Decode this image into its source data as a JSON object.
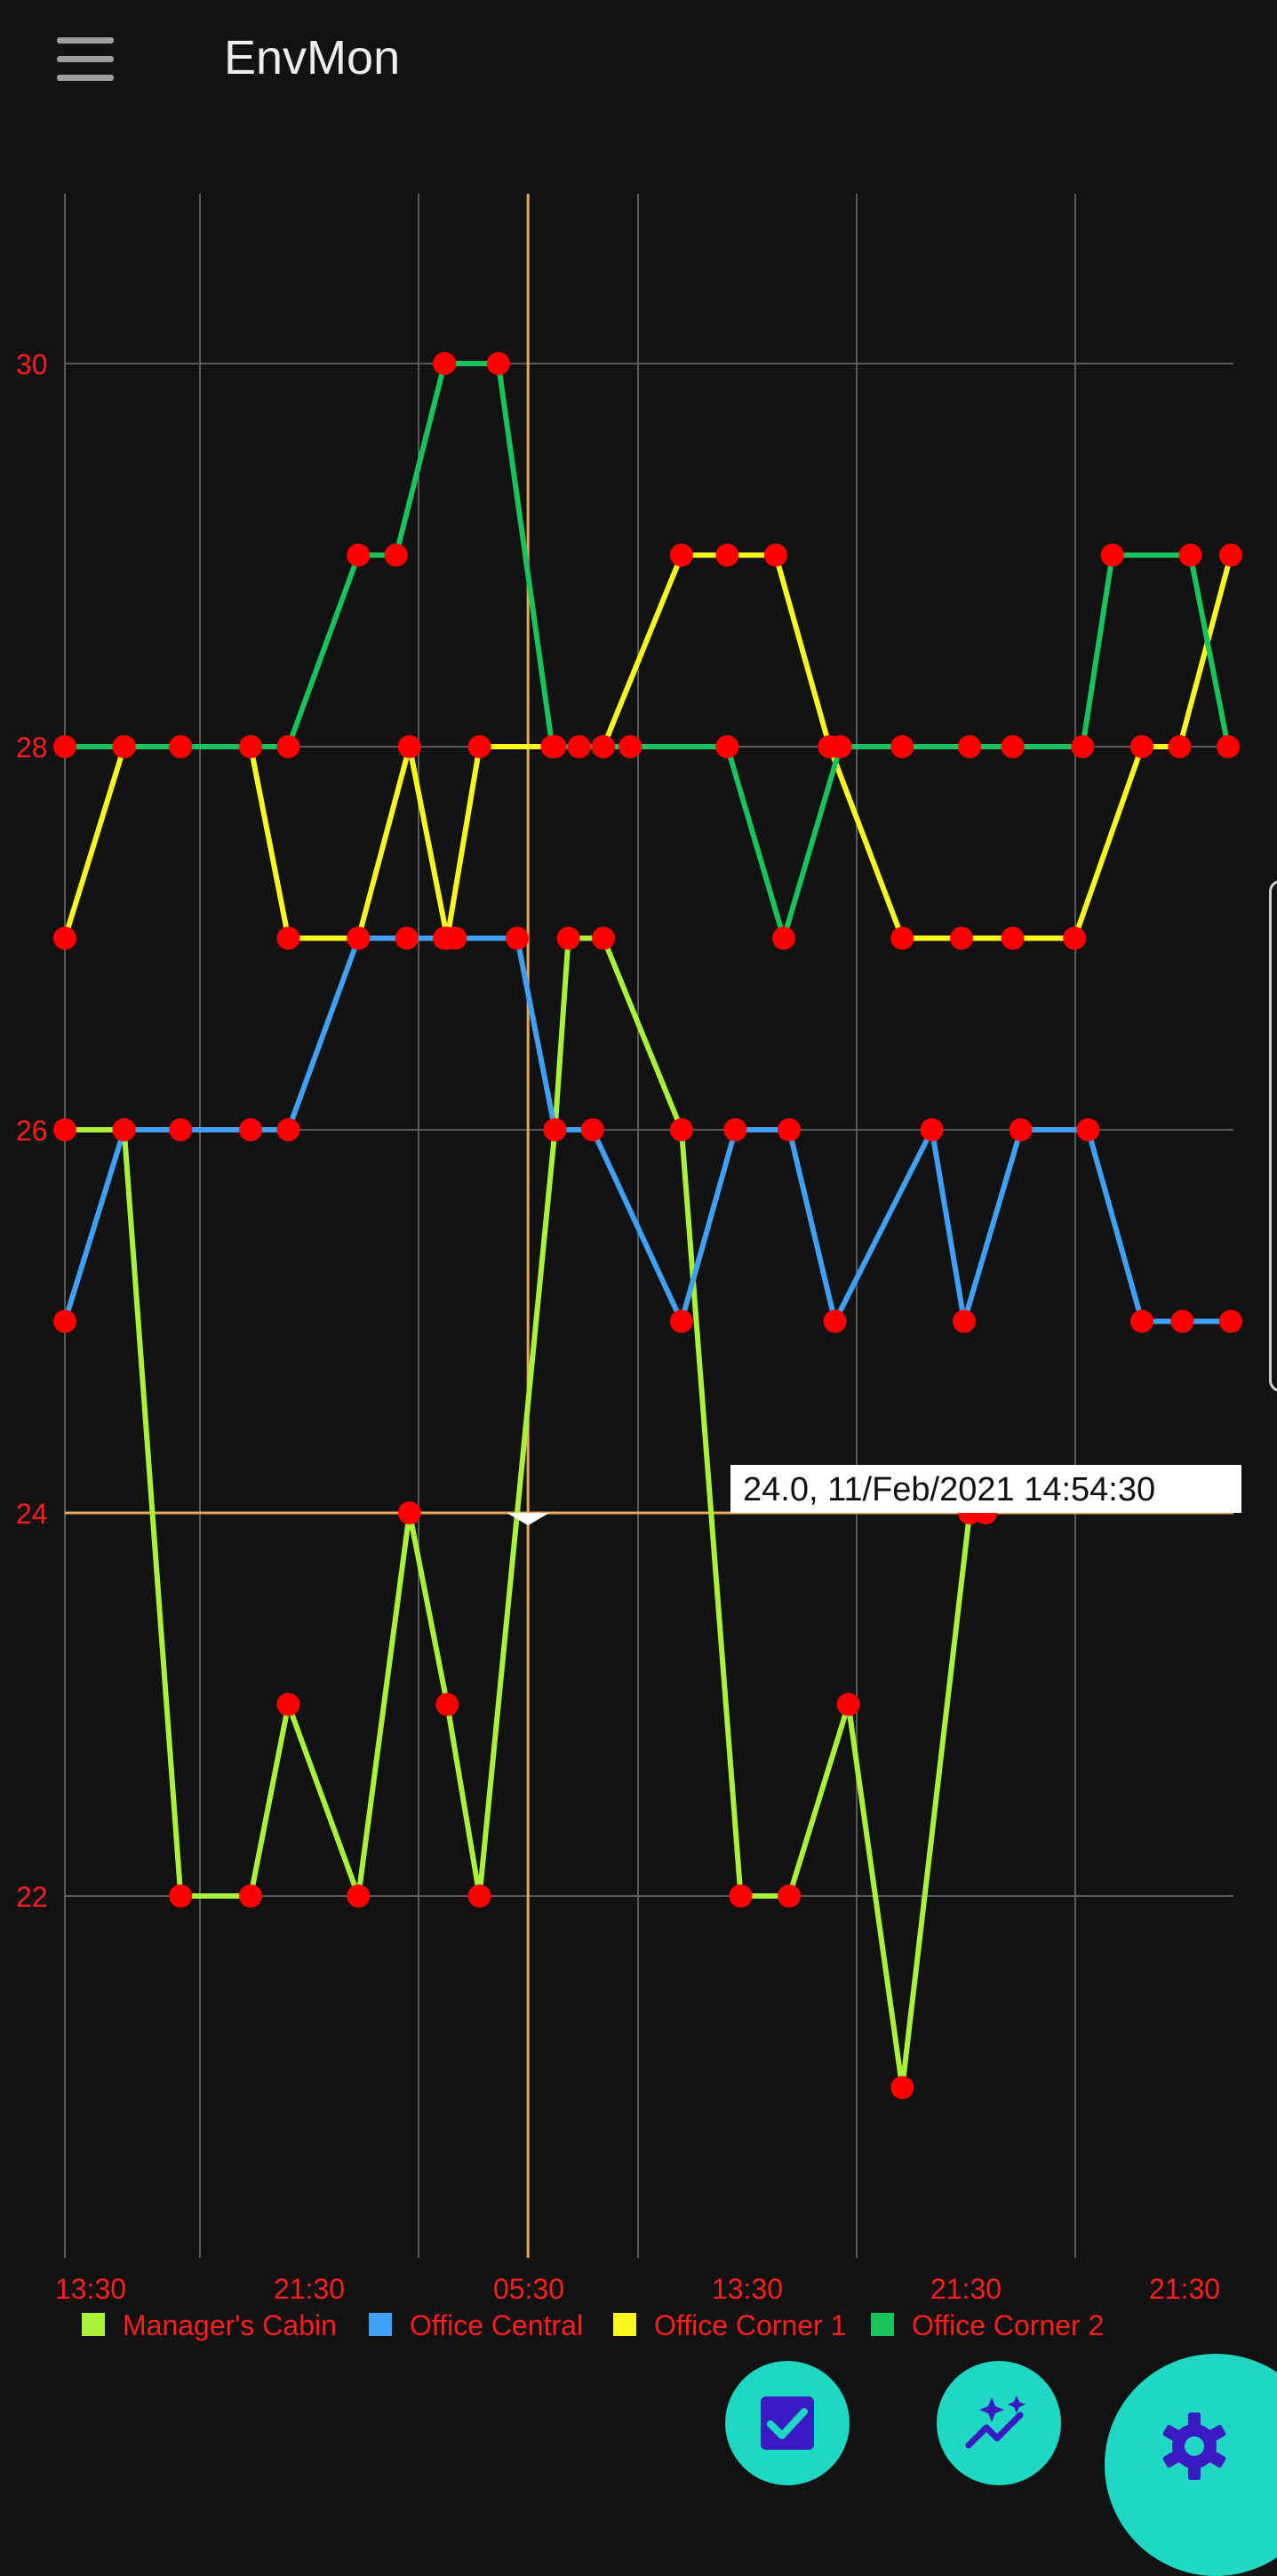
{
  "app": {
    "title": "EnvMon"
  },
  "colors": {
    "background": "#121212",
    "grid": "#5a5a5a",
    "tick_label": "#ff1f1f",
    "marker": "#ff0000",
    "crosshair": "#e6a85a",
    "fab": "#1fd8c4",
    "fab_icon": "#3a1bc2"
  },
  "icons": {
    "menu": "hamburger-menu-icon",
    "check": "checkbox-check-icon",
    "sparkle": "auto-graph-sparkle-icon",
    "settings": "gear-icon"
  },
  "chart_data": {
    "type": "line",
    "x_type": "time",
    "x_tick_labels": [
      "13:30",
      "21:30",
      "05:30",
      "13:30",
      "21:30",
      "21:30"
    ],
    "y_ticks": [
      22,
      24,
      26,
      28,
      30
    ],
    "ylim": [
      20.1,
      30.9
    ],
    "grid": true,
    "legend_position": "bottom",
    "markers": true,
    "tooltip": {
      "text": "24.0,  11/Feb/2021  14:54:30",
      "x_index": 17.2,
      "y": 24.0
    },
    "series": [
      {
        "name": "Manager's Cabin",
        "color": "#a8f23a",
        "points": [
          [
            0,
            26
          ],
          [
            2.2,
            26
          ],
          [
            4.3,
            22
          ],
          [
            6.9,
            22
          ],
          [
            8.3,
            23
          ],
          [
            10.9,
            22
          ],
          [
            12.8,
            24
          ],
          [
            14.2,
            23
          ],
          [
            15.4,
            22
          ],
          [
            18.2,
            26
          ],
          [
            18.7,
            27
          ],
          [
            20,
            27
          ],
          [
            22.9,
            26
          ],
          [
            25.1,
            22
          ],
          [
            26.9,
            22
          ],
          [
            29.1,
            23
          ],
          [
            31.1,
            21
          ],
          [
            33.6,
            24
          ],
          [
            34.2,
            24
          ]
        ]
      },
      {
        "name": "Office Central",
        "color": "#3fa0f5",
        "points": [
          [
            0,
            25
          ],
          [
            2.2,
            26
          ],
          [
            4.3,
            26
          ],
          [
            6.9,
            26
          ],
          [
            8.3,
            26
          ],
          [
            10.9,
            27
          ],
          [
            12.7,
            27
          ],
          [
            14.1,
            27
          ],
          [
            14.5,
            27
          ],
          [
            16.8,
            27
          ],
          [
            18.2,
            26
          ],
          [
            19.6,
            26
          ],
          [
            22.9,
            25
          ],
          [
            24.9,
            26
          ],
          [
            26.9,
            26
          ],
          [
            28.6,
            25
          ],
          [
            32.2,
            26
          ],
          [
            33.4,
            25
          ],
          [
            35.5,
            26
          ],
          [
            38,
            26
          ],
          [
            40,
            25
          ],
          [
            41.5,
            25
          ],
          [
            43.3,
            25
          ]
        ]
      },
      {
        "name": "Office Corner 1",
        "color": "#f8f81f",
        "points": [
          [
            0,
            27
          ],
          [
            2.2,
            28
          ],
          [
            4.3,
            28
          ],
          [
            6.9,
            28
          ],
          [
            8.3,
            27
          ],
          [
            10.9,
            27
          ],
          [
            12.8,
            28
          ],
          [
            14.2,
            27
          ],
          [
            15.4,
            28
          ],
          [
            18.2,
            28
          ],
          [
            19.1,
            28
          ],
          [
            20,
            28
          ],
          [
            22.9,
            29
          ],
          [
            24.6,
            29
          ],
          [
            26.4,
            29
          ],
          [
            28.4,
            28
          ],
          [
            31.1,
            27
          ],
          [
            33.3,
            27
          ],
          [
            35.2,
            27
          ],
          [
            37.5,
            27
          ],
          [
            40,
            28
          ],
          [
            41.4,
            28
          ],
          [
            43.3,
            29
          ]
        ]
      },
      {
        "name": "Office Corner 2",
        "color": "#19c35c",
        "points": [
          [
            0,
            28
          ],
          [
            2.2,
            28
          ],
          [
            4.3,
            28
          ],
          [
            6.9,
            28
          ],
          [
            8.3,
            28
          ],
          [
            10.9,
            29
          ],
          [
            12.3,
            29
          ],
          [
            14.1,
            30
          ],
          [
            16.1,
            30
          ],
          [
            18.1,
            28
          ],
          [
            19.1,
            28
          ],
          [
            20,
            28
          ],
          [
            21,
            28
          ],
          [
            24.6,
            28
          ],
          [
            26.7,
            27
          ],
          [
            28.8,
            28
          ],
          [
            31.1,
            28
          ],
          [
            33.6,
            28
          ],
          [
            35.2,
            28
          ],
          [
            37.8,
            28
          ],
          [
            38.9,
            29
          ],
          [
            41.8,
            29
          ],
          [
            43.2,
            28
          ]
        ]
      }
    ]
  }
}
